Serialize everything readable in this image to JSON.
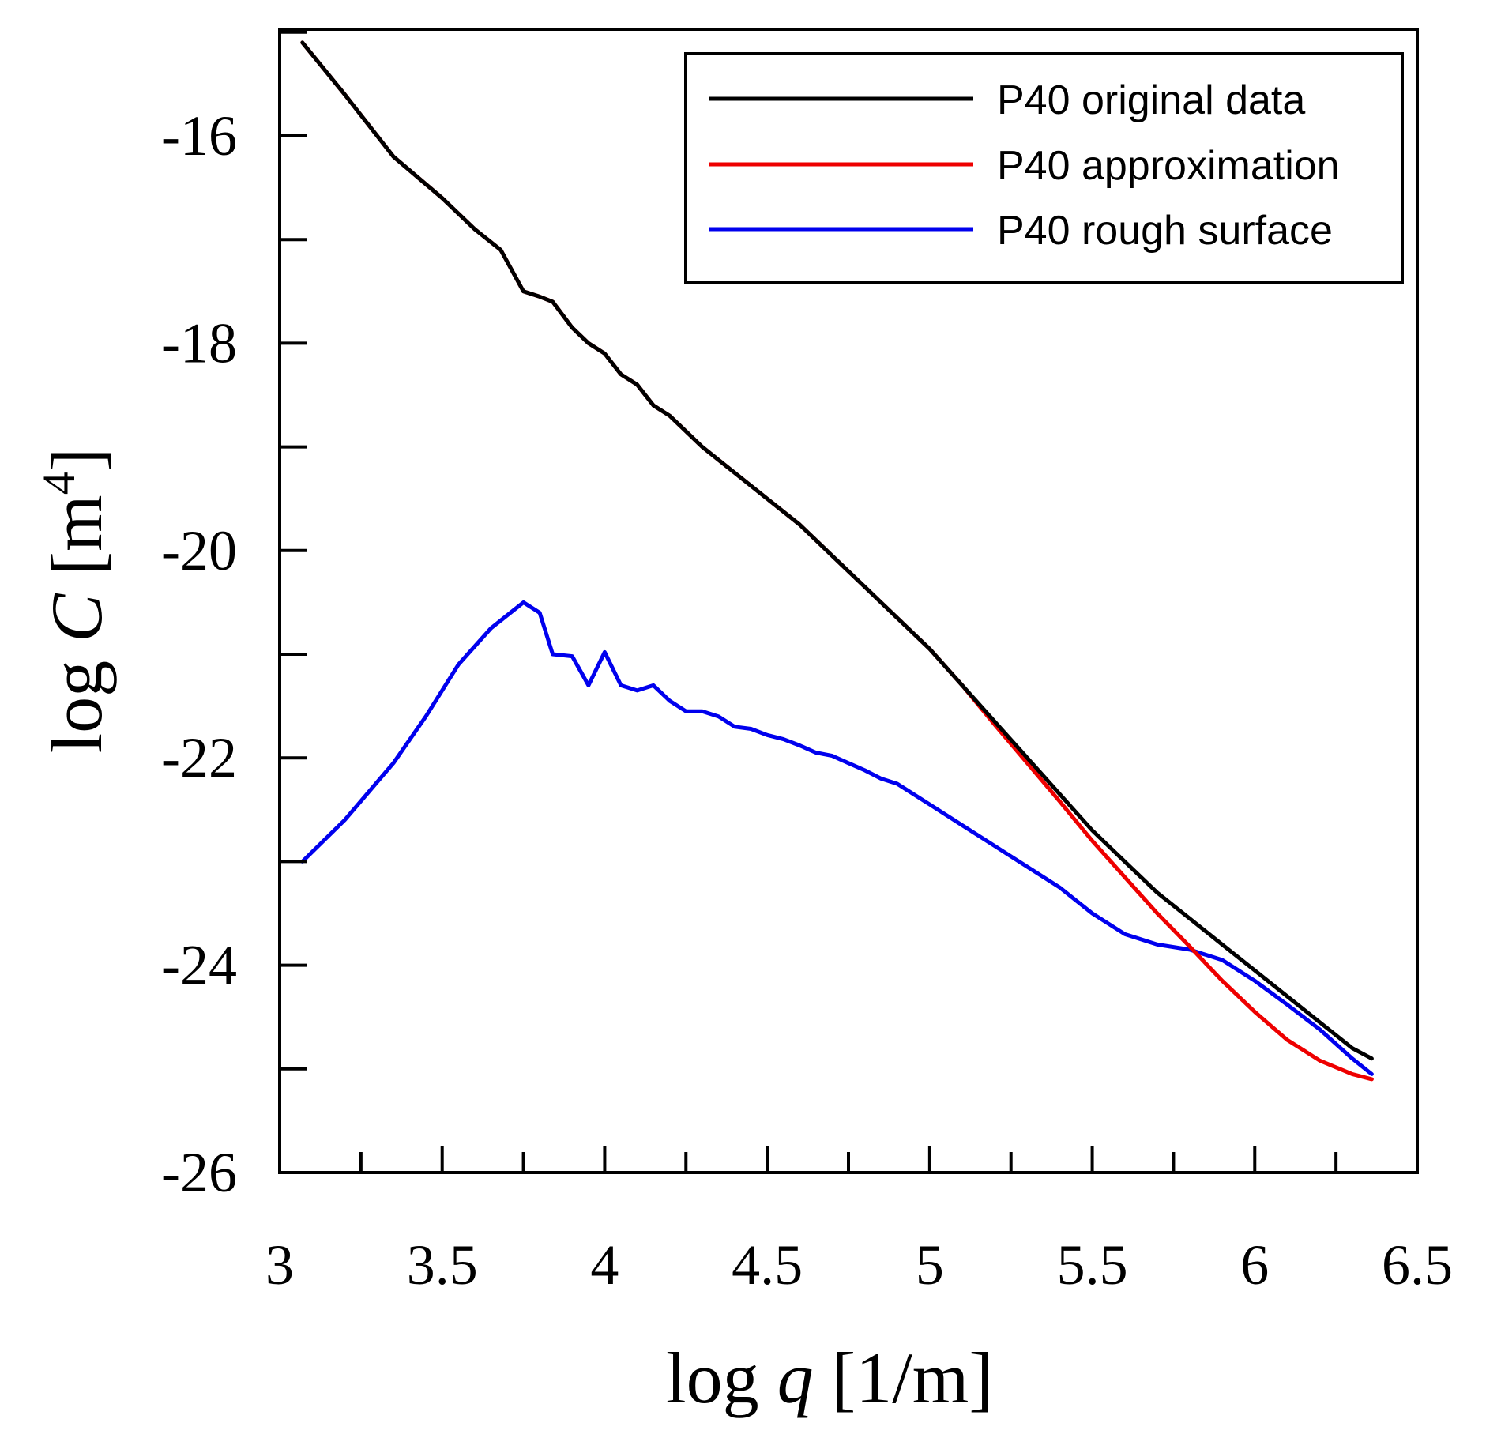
{
  "chart_data": {
    "type": "line",
    "title": "",
    "xlabel": {
      "prefix": "log ",
      "var": "q",
      "suffix": " [1/m]"
    },
    "ylabel": {
      "prefix": "log ",
      "var": "C",
      "suffix": " [m",
      "sup": "4",
      "close": "]"
    },
    "xlim": [
      3,
      6.5
    ],
    "ylim": [
      -26,
      -15.2
    ],
    "xticks": [
      3,
      3.5,
      4,
      4.5,
      5,
      5.5,
      6,
      6.5
    ],
    "xtick_labels": [
      "3",
      "3.5",
      "4",
      "4.5",
      "5",
      "5.5",
      "6",
      "6.5"
    ],
    "yticks": [
      -26,
      -24,
      -22,
      -20,
      -18,
      -16
    ],
    "ytick_labels": [
      "-26",
      "-24",
      "-22",
      "-20",
      "-18",
      "-16"
    ],
    "grid": false,
    "legend_position": "top-right",
    "series": [
      {
        "name": "P40 original data",
        "color": "#000000",
        "x": [
          3.07,
          3.2,
          3.35,
          3.5,
          3.6,
          3.68,
          3.75,
          3.8,
          3.84,
          3.9,
          3.95,
          4.0,
          4.05,
          4.1,
          4.15,
          4.2,
          4.3,
          4.4,
          4.5,
          4.6,
          4.7,
          4.8,
          4.9,
          5.0,
          5.1,
          5.2,
          5.3,
          5.4,
          5.5,
          5.6,
          5.7,
          5.8,
          5.9,
          6.0,
          6.1,
          6.2,
          6.3,
          6.36
        ],
        "y": [
          -15.1,
          -15.6,
          -16.2,
          -16.6,
          -16.9,
          -17.1,
          -17.5,
          -17.55,
          -17.6,
          -17.85,
          -18.0,
          -18.1,
          -18.3,
          -18.4,
          -18.6,
          -18.7,
          -19.0,
          -19.25,
          -19.5,
          -19.75,
          -20.05,
          -20.35,
          -20.65,
          -20.95,
          -21.3,
          -21.65,
          -22.0,
          -22.35,
          -22.7,
          -23.0,
          -23.3,
          -23.55,
          -23.8,
          -24.05,
          -24.3,
          -24.55,
          -24.8,
          -24.9
        ]
      },
      {
        "name": "P40 approximation",
        "color": "#ee0000",
        "x": [
          3.07,
          3.2,
          3.35,
          3.5,
          3.6,
          3.68,
          3.75,
          3.8,
          3.84,
          3.9,
          3.95,
          4.0,
          4.05,
          4.1,
          4.15,
          4.2,
          4.3,
          4.4,
          4.5,
          4.6,
          4.7,
          4.8,
          4.9,
          5.0,
          5.1,
          5.2,
          5.3,
          5.4,
          5.5,
          5.6,
          5.7,
          5.8,
          5.9,
          6.0,
          6.1,
          6.2,
          6.3,
          6.36
        ],
        "y": [
          -15.1,
          -15.6,
          -16.2,
          -16.6,
          -16.9,
          -17.1,
          -17.5,
          -17.55,
          -17.6,
          -17.85,
          -18.0,
          -18.1,
          -18.3,
          -18.4,
          -18.6,
          -18.7,
          -19.0,
          -19.25,
          -19.5,
          -19.75,
          -20.05,
          -20.35,
          -20.65,
          -20.95,
          -21.3,
          -21.68,
          -22.05,
          -22.42,
          -22.8,
          -23.15,
          -23.5,
          -23.82,
          -24.15,
          -24.45,
          -24.72,
          -24.92,
          -25.05,
          -25.1
        ]
      },
      {
        "name": "P40 rough surface",
        "color": "#0000ee",
        "x": [
          3.07,
          3.2,
          3.35,
          3.45,
          3.55,
          3.65,
          3.75,
          3.8,
          3.84,
          3.9,
          3.95,
          4.0,
          4.05,
          4.1,
          4.15,
          4.2,
          4.25,
          4.3,
          4.35,
          4.4,
          4.45,
          4.5,
          4.55,
          4.6,
          4.65,
          4.7,
          4.75,
          4.8,
          4.85,
          4.9,
          5.0,
          5.1,
          5.2,
          5.3,
          5.4,
          5.5,
          5.6,
          5.7,
          5.8,
          5.9,
          6.0,
          6.1,
          6.2,
          6.3,
          6.36
        ],
        "y": [
          -23.0,
          -22.6,
          -22.05,
          -21.6,
          -21.1,
          -20.75,
          -20.5,
          -20.6,
          -21.0,
          -21.02,
          -21.3,
          -20.98,
          -21.3,
          -21.35,
          -21.3,
          -21.45,
          -21.55,
          -21.55,
          -21.6,
          -21.7,
          -21.72,
          -21.78,
          -21.82,
          -21.88,
          -21.95,
          -21.98,
          -22.05,
          -22.12,
          -22.2,
          -22.25,
          -22.45,
          -22.65,
          -22.85,
          -23.05,
          -23.25,
          -23.5,
          -23.7,
          -23.8,
          -23.85,
          -23.95,
          -24.15,
          -24.38,
          -24.62,
          -24.9,
          -25.05
        ]
      }
    ]
  }
}
